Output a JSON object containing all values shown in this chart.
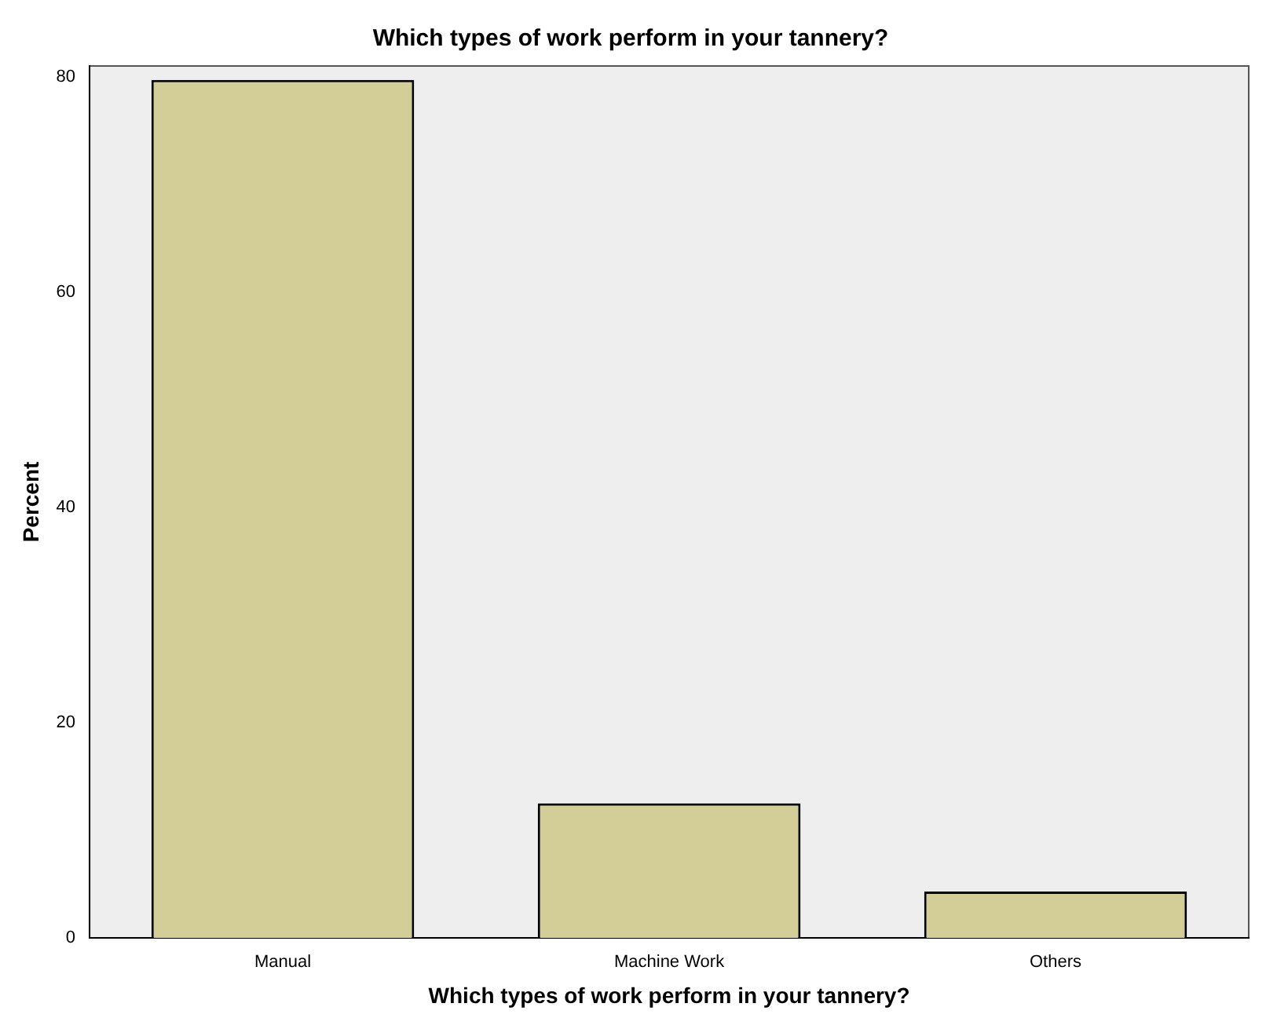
{
  "chart_data": {
    "type": "bar",
    "title": "Which types of work perform in your tannery?",
    "xlabel": "Which types of work perform in your tannery?",
    "ylabel": "Percent",
    "categories": [
      "Manual",
      "Machine Work",
      "Others"
    ],
    "values": [
      79.7,
      12.5,
      4.3
    ],
    "color": "#d3ce97",
    "ylim": [
      0,
      81
    ],
    "yticks": [
      0,
      20,
      40,
      60,
      80
    ],
    "grid": false,
    "legend": false
  }
}
